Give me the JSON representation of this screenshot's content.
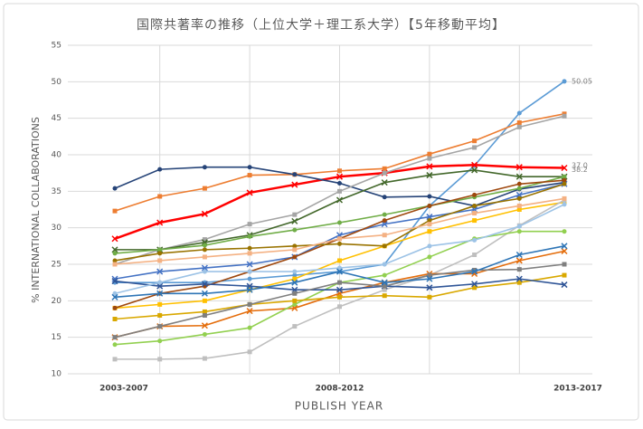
{
  "chart_data": {
    "type": "line",
    "title": "国際共著率の推移（上位大学＋理工系大学）【5年移動平均】",
    "x_label": "PUBLISH YEAR",
    "y_label": "% INTERNATIONAL COLLABORATIONS",
    "categories": [
      "2003-2007",
      null,
      null,
      null,
      null,
      "2008-2012",
      null,
      null,
      null,
      null,
      "2013-2017"
    ],
    "ylim": [
      10,
      55
    ],
    "yticks": [
      10,
      15,
      20,
      25,
      30,
      35,
      40,
      45,
      50,
      55
    ],
    "grid": true,
    "annotations": [
      "50.05",
      "38.2",
      "37.0"
    ],
    "series": [
      {
        "color": "#5b9bd5",
        "values": [
          22.5,
          22.5,
          22.5,
          23,
          23.5,
          24,
          25,
          33,
          38.5,
          45.7,
          50.05
        ]
      },
      {
        "color": "#ed7d31",
        "values": [
          32.3,
          34.3,
          35.4,
          37.2,
          37.3,
          37.8,
          38.1,
          40.1,
          41.9,
          44.4,
          45.6
        ]
      },
      {
        "color": "#ff0000",
        "values": [
          28.5,
          30.7,
          31.9,
          34.8,
          35.9,
          37,
          37.5,
          38.4,
          38.6,
          38.3,
          38.2
        ]
      },
      {
        "color": "#264478",
        "values": [
          35.4,
          38,
          38.3,
          38.3,
          37.3,
          36.1,
          34.2,
          34.3,
          33,
          35.3,
          36.2
        ]
      },
      {
        "color": "#a5a5a5",
        "values": [
          25,
          27,
          28.4,
          30.5,
          31.8,
          35,
          37.5,
          39.5,
          41,
          43.8,
          45.3
        ]
      },
      {
        "color": "#43682b",
        "values": [
          27,
          27,
          28,
          29,
          30.9,
          33.8,
          36.2,
          37.2,
          37.9,
          37,
          37.0
        ]
      },
      {
        "color": "#70ad47",
        "values": [
          26.5,
          27,
          27.6,
          28.8,
          29.7,
          30.7,
          31.8,
          33,
          34.2,
          35.4,
          37
        ]
      },
      {
        "color": "#ffc000",
        "values": [
          19,
          19.5,
          20,
          21.5,
          23,
          25.5,
          27.5,
          29.5,
          31,
          32.5,
          33.5
        ]
      },
      {
        "color": "#4472c4",
        "values": [
          23,
          24,
          24.5,
          25,
          26,
          29,
          30.5,
          31.5,
          32.5,
          34.5,
          36
        ]
      },
      {
        "color": "#9e480e",
        "values": [
          19,
          21,
          22,
          24,
          26,
          28.5,
          31,
          33,
          34.5,
          36,
          36.5
        ]
      },
      {
        "color": "#bfbfbf",
        "values": [
          12,
          12,
          12.1,
          13,
          16.5,
          19.2,
          21.5,
          23.5,
          26.3,
          30.3,
          33.8
        ]
      },
      {
        "color": "#e46c0a",
        "values": [
          15,
          16.5,
          16.6,
          18.6,
          19,
          21,
          22.5,
          23.7,
          23.7,
          25.5,
          26.8
        ]
      },
      {
        "color": "#92d050",
        "values": [
          14,
          14.5,
          15.4,
          16.3,
          19.5,
          22.5,
          23.5,
          26,
          28.5,
          29.5,
          29.5
        ]
      },
      {
        "color": "#d9a800",
        "values": [
          17.5,
          18,
          18.5,
          19.5,
          20,
          20.5,
          20.7,
          20.5,
          21.8,
          22.5,
          23.5
        ]
      },
      {
        "color": "#2f5597",
        "values": [
          22.7,
          22,
          22.3,
          22,
          21.5,
          21.5,
          22,
          21.8,
          22.3,
          23,
          22.2
        ]
      },
      {
        "color": "#9dc3e6",
        "values": [
          21,
          22.5,
          24,
          24,
          24,
          24.5,
          25,
          27.5,
          28.3,
          30.2,
          33.2
        ]
      },
      {
        "color": "#7f7f7f",
        "values": [
          15,
          16.5,
          18,
          19.5,
          21,
          22.5,
          22,
          23.5,
          24.2,
          24.3,
          25
        ]
      },
      {
        "color": "#2e75b6",
        "values": [
          20.5,
          21,
          21,
          21.5,
          22.5,
          24,
          22.5,
          23,
          24,
          26.3,
          27.5
        ]
      },
      {
        "color": "#997300",
        "values": [
          25.5,
          26.5,
          27,
          27.2,
          27.5,
          27.8,
          27.5,
          31,
          33,
          34,
          36
        ]
      },
      {
        "color": "#f4b183",
        "values": [
          25,
          25.5,
          26,
          26.5,
          27,
          28.5,
          29,
          30.5,
          32,
          33,
          34
        ]
      }
    ]
  }
}
